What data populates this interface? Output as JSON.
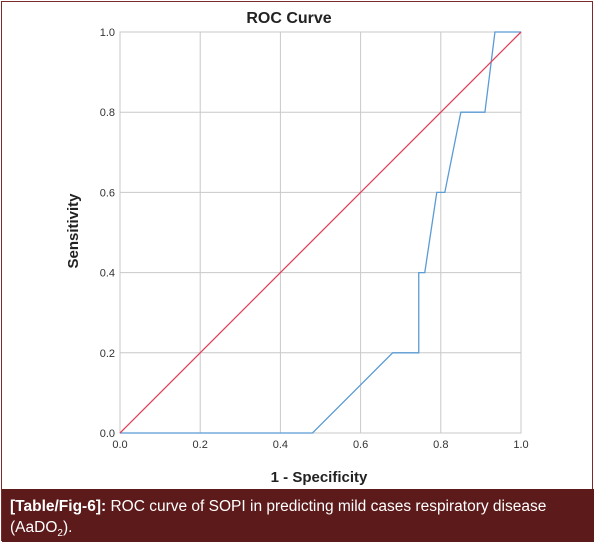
{
  "chart_data": {
    "type": "line",
    "title": "ROC Curve",
    "xlabel": "1 - Specificity",
    "ylabel": "Sensitivity",
    "xlim": [
      0,
      1
    ],
    "ylim": [
      0,
      1
    ],
    "x_ticks": [
      "0.0",
      "0.2",
      "0.4",
      "0.6",
      "0.8",
      "1.0"
    ],
    "y_ticks": [
      "0.0",
      "0.2",
      "0.4",
      "0.6",
      "0.8",
      "1.0"
    ],
    "grid": true,
    "series": [
      {
        "color": "#5b9bd5",
        "points": [
          [
            0,
            0
          ],
          [
            0.48,
            0
          ],
          [
            0.68,
            0.2
          ],
          [
            0.745,
            0.2
          ],
          [
            0.745,
            0.4
          ],
          [
            0.76,
            0.4
          ],
          [
            0.79,
            0.6
          ],
          [
            0.81,
            0.6
          ],
          [
            0.85,
            0.8
          ],
          [
            0.91,
            0.8
          ],
          [
            0.935,
            1.0
          ],
          [
            1.0,
            1.0
          ]
        ]
      },
      {
        "color": "#e0405a",
        "points": [
          [
            0,
            0
          ],
          [
            1,
            1
          ]
        ]
      }
    ]
  },
  "caption": {
    "ref": "[Table/Fig-6]:",
    "text": " ROC curve of SOPI in predicting mild cases respiratory disease (AaDO",
    "sub": "2",
    "tail": ")."
  }
}
